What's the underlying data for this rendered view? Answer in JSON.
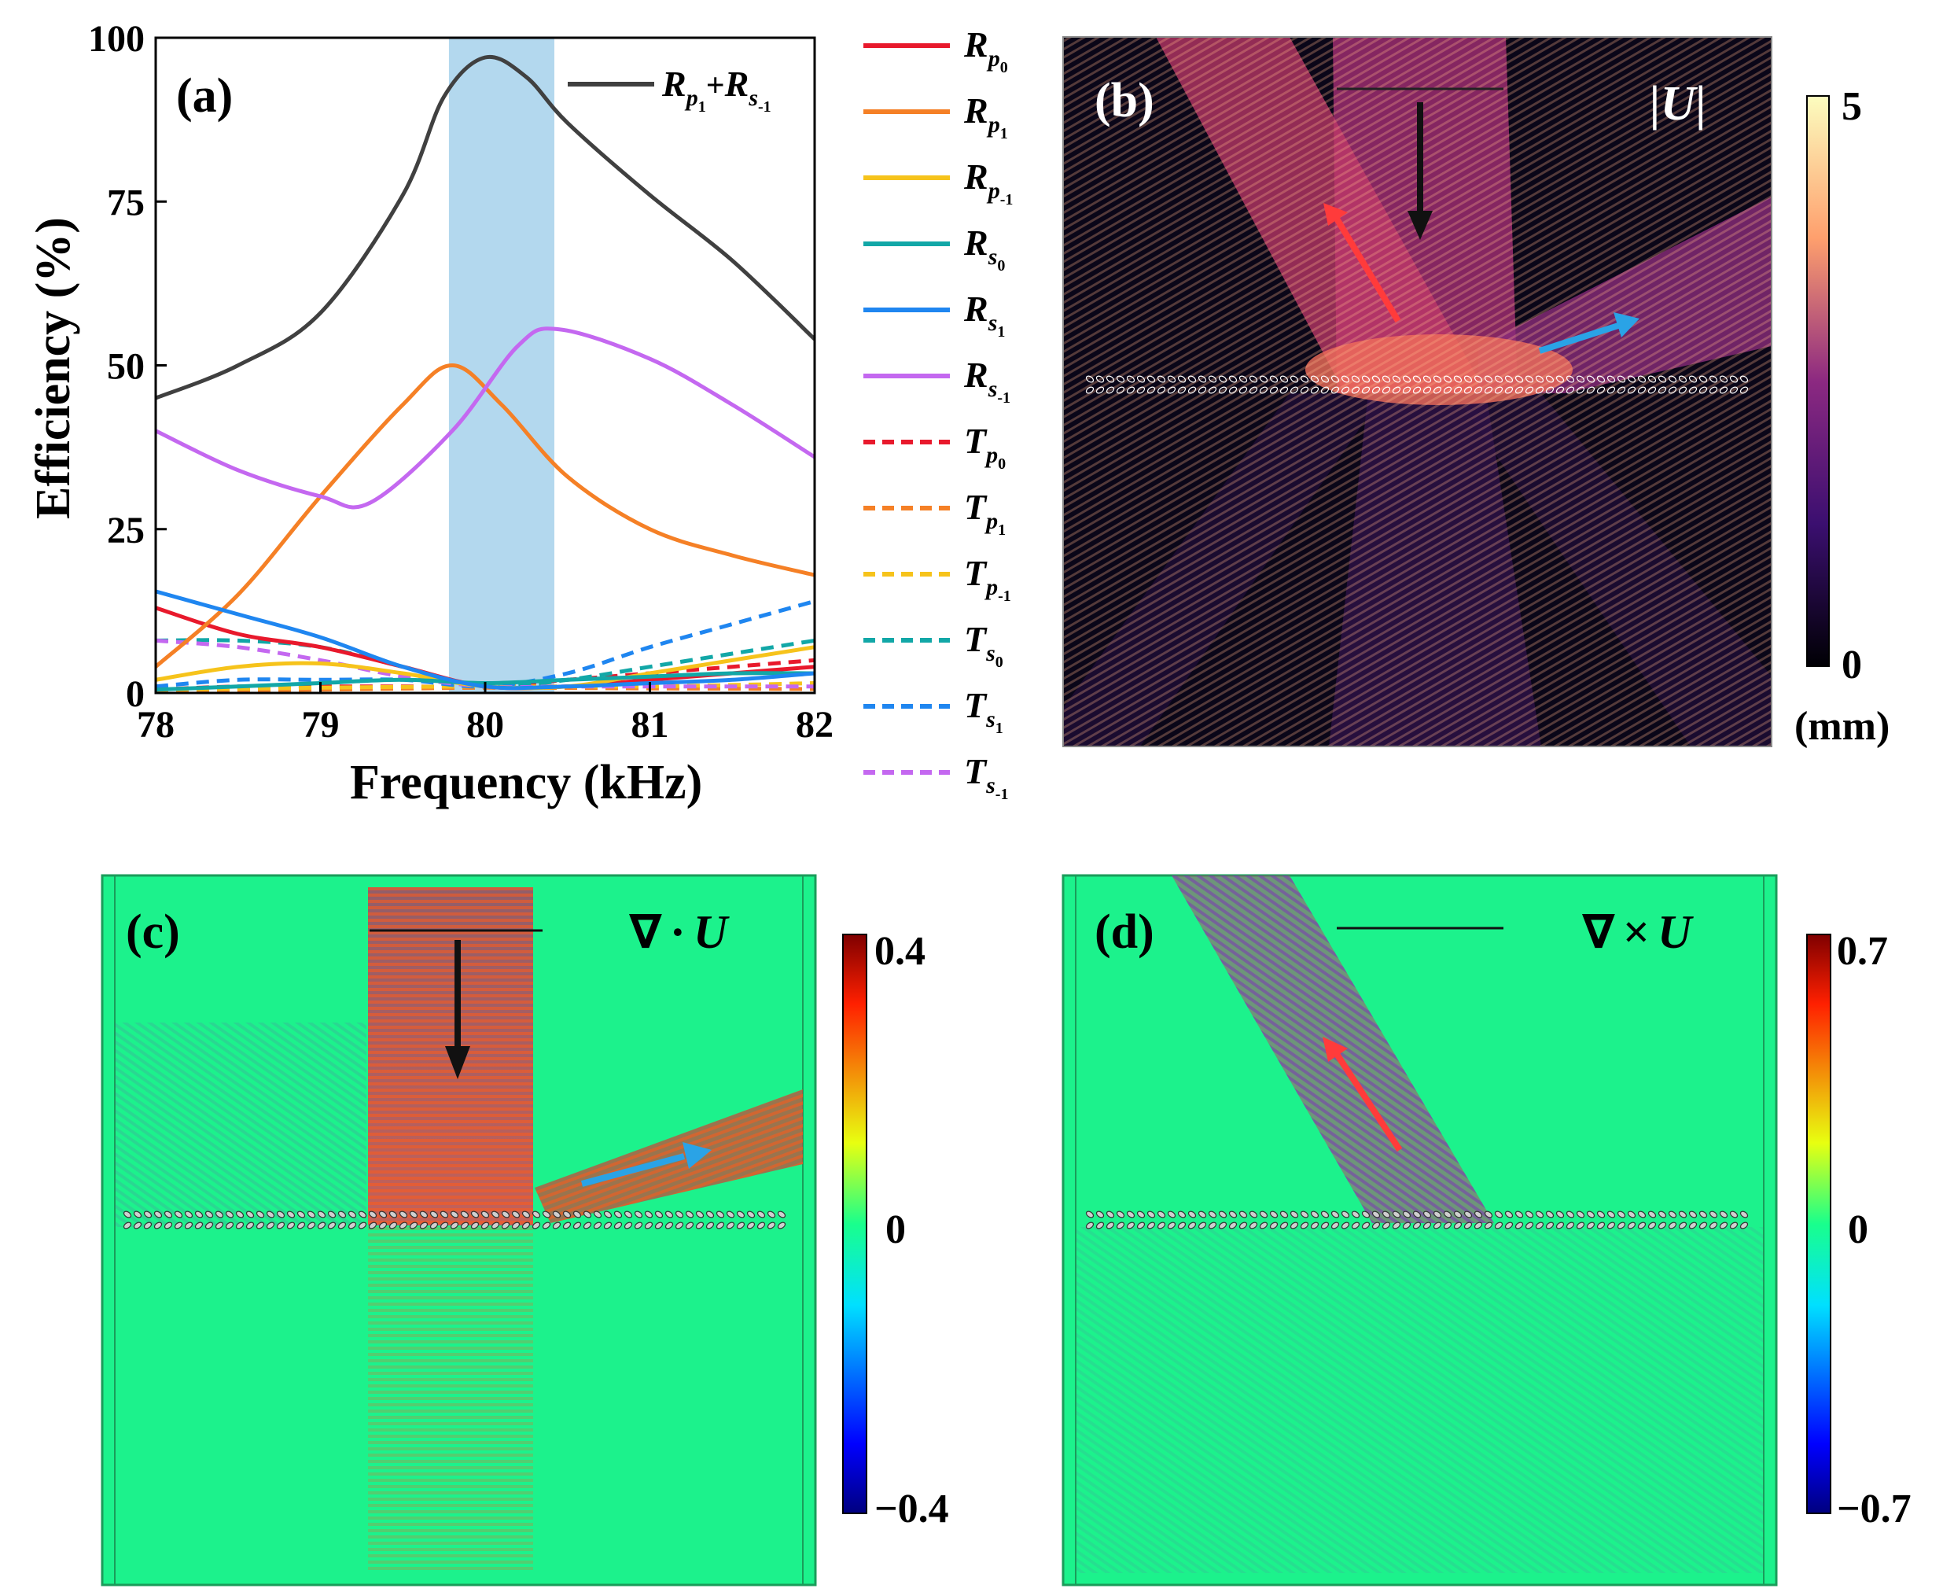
{
  "chart_data": [
    {
      "panel": "(a)",
      "type": "line",
      "xlabel": "Frequency (kHz)",
      "ylabel": "Efficiency (%)",
      "xlim": [
        78,
        82
      ],
      "ylim": [
        0,
        100
      ],
      "xticks": [
        "78",
        "79",
        "80",
        "81",
        "82"
      ],
      "yticks": [
        "0",
        "25",
        "50",
        "75",
        "100"
      ],
      "highlight_band": {
        "x0": 79.78,
        "x1": 80.42,
        "color": "#b3d8ee"
      },
      "inset_legend": {
        "main": "R",
        "sub": "p",
        "subsub": "1",
        "plus": "+",
        "main2": "R",
        "sub2": "s",
        "subsub2": "-1"
      },
      "series": [
        {
          "name": "Rp1+Rs-1",
          "color": "#404040",
          "dash": "solid",
          "x": [
            78,
            78.5,
            79,
            79.5,
            79.75,
            80,
            80.25,
            80.5,
            81,
            81.5,
            82
          ],
          "y": [
            45,
            50,
            58,
            76,
            91,
            97,
            94,
            87,
            76,
            66,
            54
          ]
        },
        {
          "name": "Rp0",
          "color": "#e8192c",
          "dash": "solid",
          "x": [
            78,
            78.5,
            79,
            79.5,
            80,
            80.5,
            81,
            81.5,
            82
          ],
          "y": [
            13,
            9,
            7,
            4,
            1,
            1,
            2,
            3,
            4
          ]
        },
        {
          "name": "Rp1",
          "color": "#f58026",
          "dash": "solid",
          "x": [
            78,
            78.5,
            79,
            79.5,
            79.8,
            80.1,
            80.5,
            81,
            81.5,
            82
          ],
          "y": [
            4,
            15,
            30,
            44,
            50,
            44,
            33,
            25,
            21,
            18
          ]
        },
        {
          "name": "Rp-1",
          "color": "#f6c31b",
          "dash": "solid",
          "x": [
            78,
            78.5,
            79,
            79.5,
            80,
            80.5,
            81,
            81.5,
            82
          ],
          "y": [
            2,
            4,
            4.5,
            3,
            1,
            1,
            3,
            5,
            7
          ]
        },
        {
          "name": "Rs0",
          "color": "#12a7a7",
          "dash": "solid",
          "x": [
            78,
            78.5,
            79,
            79.5,
            80,
            80.5,
            81,
            81.5,
            82
          ],
          "y": [
            0.5,
            1,
            1.5,
            2,
            1.5,
            2,
            2.5,
            3,
            3
          ]
        },
        {
          "name": "Rs1",
          "color": "#1f86f0",
          "dash": "solid",
          "x": [
            78,
            78.5,
            79,
            79.5,
            80,
            80.5,
            81,
            81.5,
            82
          ],
          "y": [
            15.5,
            12,
            8.5,
            4,
            1,
            1,
            1.5,
            2,
            3
          ]
        },
        {
          "name": "Rs-1",
          "color": "#c468f0",
          "dash": "solid",
          "x": [
            78,
            78.5,
            79,
            79.3,
            79.8,
            80.2,
            80.45,
            81,
            81.5,
            82
          ],
          "y": [
            40,
            34,
            30,
            29,
            40,
            53,
            55.5,
            51,
            44,
            36
          ]
        },
        {
          "name": "Tp0",
          "color": "#e8192c",
          "dash": "dash",
          "x": [
            78,
            78.5,
            79,
            79.5,
            80,
            80.5,
            81,
            81.5,
            82
          ],
          "y": [
            0.5,
            1,
            1,
            1,
            1,
            2,
            3,
            4,
            5
          ]
        },
        {
          "name": "Tp1",
          "color": "#f58026",
          "dash": "dash",
          "x": [
            78,
            79,
            80,
            81,
            82
          ],
          "y": [
            0.3,
            0.5,
            0.8,
            0.7,
            0.6
          ]
        },
        {
          "name": "Tp-1",
          "color": "#f6c31b",
          "dash": "dash",
          "x": [
            78,
            79,
            80,
            81,
            82
          ],
          "y": [
            0.5,
            0.8,
            1,
            1,
            1.5
          ]
        },
        {
          "name": "Ts0",
          "color": "#12a7a7",
          "dash": "dash",
          "x": [
            78,
            78.5,
            79,
            79.5,
            80,
            80.5,
            81,
            81.5,
            82
          ],
          "y": [
            8,
            8,
            7,
            4,
            1,
            2,
            4,
            6,
            8
          ]
        },
        {
          "name": "Ts1",
          "color": "#1f86f0",
          "dash": "dash",
          "x": [
            78,
            78.5,
            79,
            79.5,
            80,
            80.5,
            81,
            81.5,
            82
          ],
          "y": [
            1,
            2,
            2,
            2,
            1,
            3,
            7,
            10.5,
            14
          ]
        },
        {
          "name": "Ts-1",
          "color": "#c468f0",
          "dash": "dash",
          "x": [
            78,
            78.5,
            79,
            79.5,
            80,
            80.5,
            81,
            81.5,
            82
          ],
          "y": [
            8,
            7,
            5,
            2.5,
            1,
            1,
            1,
            1,
            1
          ]
        }
      ],
      "legend": [
        {
          "letter": "R",
          "sub": "p",
          "subsub": "0",
          "color": "#e8192c",
          "dash": "solid"
        },
        {
          "letter": "R",
          "sub": "p",
          "subsub": "1",
          "color": "#f58026",
          "dash": "solid"
        },
        {
          "letter": "R",
          "sub": "p",
          "subsub": "-1",
          "color": "#f6c31b",
          "dash": "solid"
        },
        {
          "letter": "R",
          "sub": "s",
          "subsub": "0",
          "color": "#12a7a7",
          "dash": "solid"
        },
        {
          "letter": "R",
          "sub": "s",
          "subsub": "1",
          "color": "#1f86f0",
          "dash": "solid"
        },
        {
          "letter": "R",
          "sub": "s",
          "subsub": "-1",
          "color": "#c468f0",
          "dash": "solid"
        },
        {
          "letter": "T",
          "sub": "p",
          "subsub": "0",
          "color": "#e8192c",
          "dash": "dash"
        },
        {
          "letter": "T",
          "sub": "p",
          "subsub": "1",
          "color": "#f58026",
          "dash": "dash"
        },
        {
          "letter": "T",
          "sub": "p",
          "subsub": "-1",
          "color": "#f6c31b",
          "dash": "dash"
        },
        {
          "letter": "T",
          "sub": "s",
          "subsub": "0",
          "color": "#12a7a7",
          "dash": "dash"
        },
        {
          "letter": "T",
          "sub": "s",
          "subsub": "1",
          "color": "#1f86f0",
          "dash": "dash"
        },
        {
          "letter": "T",
          "sub": "s",
          "subsub": "-1",
          "color": "#c468f0",
          "dash": "dash"
        }
      ]
    },
    {
      "panel": "(b)",
      "type": "heatmap",
      "field_label": "|U|",
      "colormap": "magma",
      "colorbar": {
        "max": "5",
        "min": "0",
        "unit": "(mm)"
      },
      "arrows": [
        "incident (black, downward)",
        "reflected p (red, upper-left)",
        "reflected s (blue, right)"
      ]
    },
    {
      "panel": "(c)",
      "type": "heatmap",
      "field_label_sym": "∇",
      "field_label_op": "·",
      "field_label_var": "U",
      "colormap": "jet",
      "colorbar": {
        "max": "0.4",
        "mid": "0",
        "min": "−0.4"
      }
    },
    {
      "panel": "(d)",
      "type": "heatmap",
      "field_label_sym": "∇",
      "field_label_op": "×",
      "field_label_var": "U",
      "colormap": "jet",
      "colorbar": {
        "max": "0.7",
        "mid": "0",
        "min": "−0.7"
      }
    }
  ],
  "colors": {
    "arrow_black": "#111111",
    "arrow_red": "#ff3b3b",
    "arrow_blue": "#2aa3e6",
    "field_green": "#1cf28c"
  }
}
